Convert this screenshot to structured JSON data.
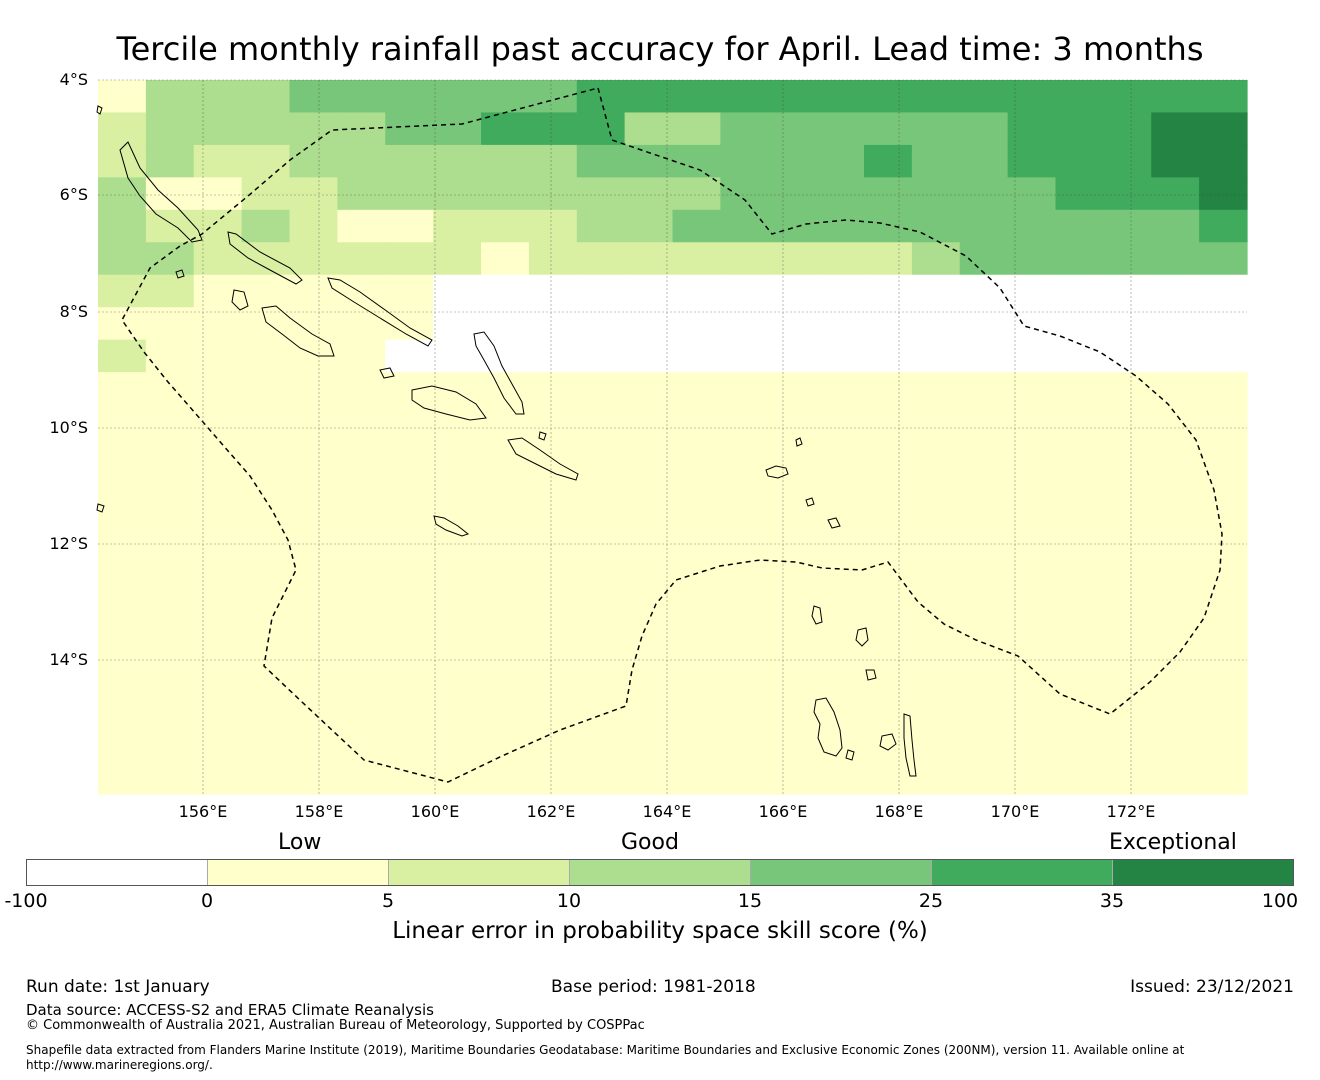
{
  "title": "Tercile monthly rainfall past accuracy for April. Lead time: 3 months",
  "map": {
    "lat_labels": [
      "4°S",
      "6°S",
      "8°S",
      "10°S",
      "12°S",
      "14°S"
    ],
    "lon_labels": [
      "156°E",
      "158°E",
      "160°E",
      "162°E",
      "164°E",
      "166°E",
      "168°E",
      "170°E",
      "172°E"
    ],
    "lon_range_deg_E": [
      154.2,
      174.0
    ],
    "lat_range_deg_S": [
      4.0,
      16.3
    ],
    "skill_grid_class_rows": [
      "133344444455555555555555",
      "233333445553344444455566",
      "232233333344444454455566",
      "311223333333344444445556",
      "322321122233444444444445",
      "332222221222222223444444",
      "221111100000000000000000",
      "111111100000000000000000",
      "211111000000000000000000",
      "111111111111111111111111",
      "111111111111111111111111",
      "111111111111111111111111",
      "111111111111111111111111",
      "111111111111111111111111",
      "111111111111111111111111",
      "111111111111111111111111",
      "111111111111111111111111",
      "111111111111111111111111",
      "111111111111111111111111",
      "111111111111111111111111",
      "111111111111111111111111",
      "111111111111111111111111"
    ],
    "land_color": "#000000",
    "boundary_color": "#000000"
  },
  "category_labels": [
    "Low",
    "Good",
    "Exceptional"
  ],
  "colorbar": {
    "colors": [
      "#ffffff",
      "#ffffcc",
      "#d9f0a3",
      "#addd8e",
      "#78c679",
      "#41ab5d",
      "#238443"
    ],
    "ticks": [
      "-100",
      "0",
      "5",
      "10",
      "15",
      "25",
      "35",
      "100"
    ],
    "label": "Linear error in probability space skill score (%)"
  },
  "footer": {
    "run_date": "Run date: 1st January",
    "base_period": "Base period: 1981-2018",
    "issued": "Issued: 23/12/2021",
    "data_source": "Data source: ACCESS-S2 and ERA5 Climate Reanalysis",
    "copyright": "© Commonwealth of Australia 2021, Australian Bureau of Meteorology, Supported by COSPPac",
    "shapefile_line1": "Shapefile data extracted from Flanders Marine Institute (2019), Maritime Boundaries Geodatabase: Maritime Boundaries and Exclusive Economic Zones (200NM), version 11. Available online at",
    "shapefile_line2": "http://www.marineregions.org/."
  }
}
